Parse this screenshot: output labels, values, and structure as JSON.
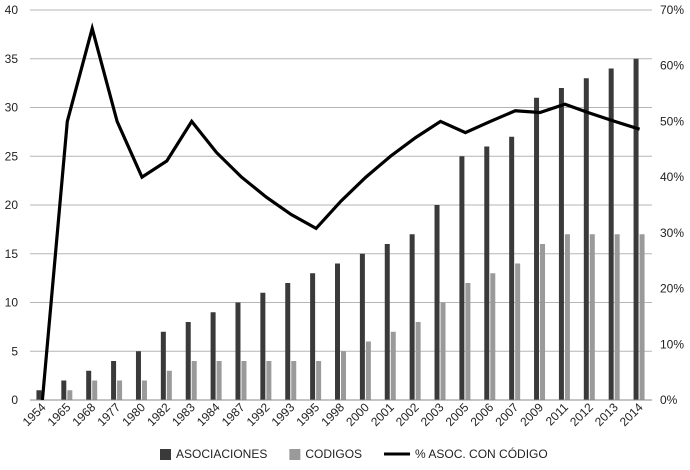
{
  "chart_data": {
    "type": "bar",
    "title": "",
    "xlabel": "",
    "ylabel": "",
    "categories": [
      "1954",
      "1965",
      "1968",
      "1977",
      "1980",
      "1982",
      "1983",
      "1984",
      "1987",
      "1992",
      "1993",
      "1995",
      "1998",
      "2000",
      "2001",
      "2002",
      "2003",
      "2005",
      "2006",
      "2007",
      "2009",
      "2011",
      "2012",
      "2013",
      "2014"
    ],
    "series": [
      {
        "name": "ASOCIACIONES",
        "type": "bar",
        "axis": "left",
        "color": "#3a3a3a",
        "values": [
          1,
          2,
          3,
          4,
          5,
          7,
          8,
          9,
          10,
          11,
          12,
          13,
          14,
          15,
          16,
          17,
          20,
          25,
          26,
          27,
          31,
          32,
          33,
          34,
          35
        ]
      },
      {
        "name": "CODIGOS",
        "type": "bar",
        "axis": "left",
        "color": "#9a9a9a",
        "values": [
          0,
          1,
          2,
          2,
          2,
          3,
          4,
          4,
          4,
          4,
          4,
          4,
          5,
          6,
          7,
          8,
          10,
          12,
          13,
          14,
          16,
          17,
          17,
          17,
          17
        ]
      },
      {
        "name": "% ASOC. CON CÓDIGO",
        "type": "line",
        "axis": "right",
        "color": "#000000",
        "values": [
          0,
          50,
          66.7,
          50,
          40,
          42.9,
          50,
          44.4,
          40,
          36.4,
          33.3,
          30.8,
          35.7,
          40,
          43.8,
          47.1,
          50,
          48,
          50,
          51.9,
          51.6,
          53.1,
          51.5,
          50,
          48.6
        ]
      }
    ],
    "y_left": {
      "ylim": [
        0,
        40
      ],
      "ticks": [
        "0",
        "5",
        "10",
        "15",
        "20",
        "25",
        "30",
        "35",
        "40"
      ]
    },
    "y_right": {
      "ylim": [
        0,
        70
      ],
      "ticks": [
        "0%",
        "10%",
        "20%",
        "30%",
        "40%",
        "50%",
        "60%",
        "70%"
      ]
    },
    "grid": true,
    "legend_position": "bottom"
  }
}
